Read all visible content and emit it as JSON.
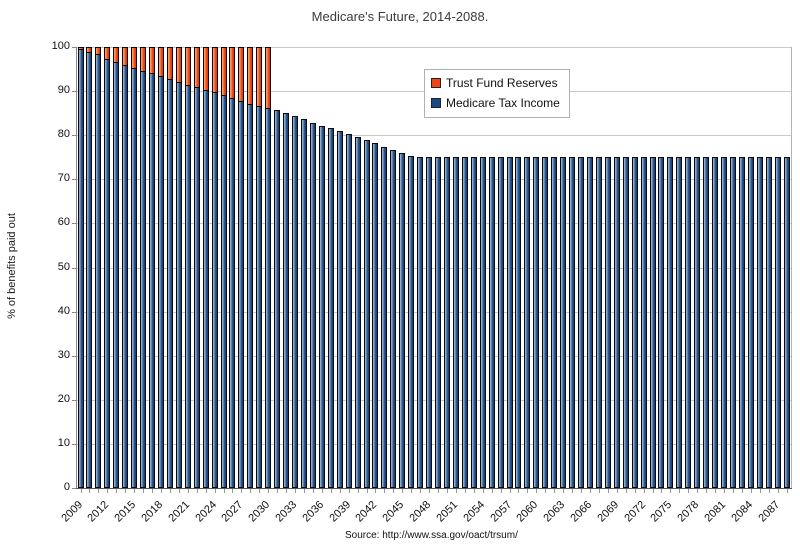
{
  "title": "Medicare's Future, 2014-2088.",
  "y_axis_title": "% of benefits paid out",
  "source_note": "Source: http://www.ssa.gov/oact/trsum/",
  "colors": {
    "tax_income_blue": "#1a4a85",
    "reserves_orange": "#ee4417",
    "gridline": "#c9c9c9",
    "background": "#ffffff"
  },
  "legend": [
    {
      "label": "Trust Fund Reserves",
      "color": "#ee4417",
      "swatch_icon": "orange-square-icon"
    },
    {
      "label": "Medicare Tax Income",
      "color": "#1a4a85",
      "swatch_icon": "blue-square-icon"
    }
  ],
  "chart_data": {
    "type": "bar",
    "stacked": true,
    "title": "Medicare's Future, 2014-2088.",
    "xlabel": "",
    "ylabel": "% of benefits paid out",
    "ylim": [
      0,
      100
    ],
    "y_ticks": [
      0,
      10,
      20,
      30,
      40,
      50,
      60,
      70,
      80,
      90,
      100
    ],
    "grid": "horizontal",
    "legend_position": "top-center-inside",
    "x_tick_labels": [
      "2009",
      "2012",
      "2015",
      "2018",
      "2021",
      "2024",
      "2027",
      "2030",
      "2033",
      "2036",
      "2039",
      "2042",
      "2045",
      "2048",
      "2051",
      "2054",
      "2057",
      "2060",
      "2063",
      "2066",
      "2069",
      "2072",
      "2075",
      "2078",
      "2081",
      "2084",
      "2087"
    ],
    "x": [
      2009,
      2010,
      2011,
      2012,
      2013,
      2014,
      2015,
      2016,
      2017,
      2018,
      2019,
      2020,
      2021,
      2022,
      2023,
      2024,
      2025,
      2026,
      2027,
      2028,
      2029,
      2030,
      2031,
      2032,
      2033,
      2034,
      2035,
      2036,
      2037,
      2038,
      2039,
      2040,
      2041,
      2042,
      2043,
      2044,
      2045,
      2046,
      2047,
      2048,
      2049,
      2050,
      2051,
      2052,
      2053,
      2054,
      2055,
      2056,
      2057,
      2058,
      2059,
      2060,
      2061,
      2062,
      2063,
      2064,
      2065,
      2066,
      2067,
      2068,
      2069,
      2070,
      2071,
      2072,
      2073,
      2074,
      2075,
      2076,
      2077,
      2078,
      2079,
      2080,
      2081,
      2082,
      2083,
      2084,
      2085,
      2086,
      2087,
      2088
    ],
    "series": [
      {
        "name": "Medicare Tax Income",
        "color": "#1a4a85",
        "values": [
          99.4,
          98.6,
          98.1,
          97.0,
          96.4,
          95.6,
          95.0,
          94.4,
          93.9,
          93.2,
          92.5,
          91.9,
          91.2,
          90.7,
          90.0,
          89.5,
          88.9,
          88.2,
          87.5,
          86.9,
          86.3,
          85.9,
          85.7,
          85.0,
          84.3,
          83.6,
          82.8,
          82.2,
          81.6,
          81.0,
          80.3,
          79.6,
          78.9,
          78.2,
          77.4,
          76.7,
          76.0,
          75.4,
          75.0,
          75.0,
          75.0,
          75.0,
          75.0,
          75.0,
          75.0,
          75.0,
          75.0,
          75.0,
          75.0,
          75.0,
          75.0,
          75.0,
          75.0,
          75.0,
          75.0,
          75.0,
          75.0,
          75.0,
          75.0,
          75.0,
          75.0,
          75.0,
          75.0,
          75.0,
          75.0,
          75.0,
          75.0,
          75.0,
          75.0,
          75.0,
          75.0,
          75.0,
          75.0,
          75.0,
          75.0,
          75.0,
          75.0,
          75.0,
          75.0,
          75.0
        ]
      },
      {
        "name": "Trust Fund Reserves",
        "color": "#ee4417",
        "values": [
          0.6,
          1.4,
          1.9,
          3.0,
          3.6,
          4.4,
          5.0,
          5.6,
          6.1,
          6.8,
          7.5,
          8.1,
          8.8,
          9.3,
          10.0,
          10.5,
          11.1,
          11.8,
          12.5,
          13.1,
          13.7,
          14.1,
          0,
          0,
          0,
          0,
          0,
          0,
          0,
          0,
          0,
          0,
          0,
          0,
          0,
          0,
          0,
          0,
          0,
          0,
          0,
          0,
          0,
          0,
          0,
          0,
          0,
          0,
          0,
          0,
          0,
          0,
          0,
          0,
          0,
          0,
          0,
          0,
          0,
          0,
          0,
          0,
          0,
          0,
          0,
          0,
          0,
          0,
          0,
          0,
          0,
          0,
          0,
          0,
          0,
          0,
          0,
          0,
          0,
          0
        ]
      }
    ],
    "source": "Source: http://www.ssa.gov/oact/trsum/"
  }
}
